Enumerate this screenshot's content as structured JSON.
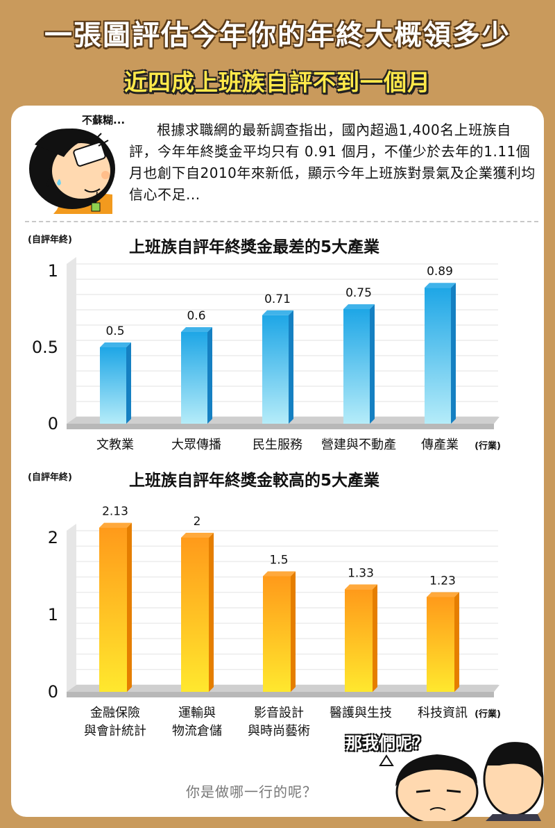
{
  "header": {
    "title": "一張圖評估今年你的年終大概領多少",
    "subtitle": "近四成上班族自評不到一個月"
  },
  "intro": {
    "bubble_label": "不蘇糊...",
    "text": "根據求職網的最新調查指出，國內超過1,400名上班族自評，今年年終獎金平均只有 0.91 個月，不僅少於去年的1.11個月也創下自2010年來新低，顯示今年上班族對景氣及企業獲利均信心不足..."
  },
  "chart_data": [
    {
      "type": "bar",
      "title": "上班族自評年終獎金最差的5大產業",
      "ylabel": "(自評年終)",
      "xlabel": "(行業)",
      "categories": [
        "文教業",
        "大眾傳播",
        "民生服務",
        "營建與不動產",
        "傳產業"
      ],
      "values": [
        0.5,
        0.6,
        0.71,
        0.75,
        0.89
      ],
      "value_labels": [
        "0.5",
        "0.6",
        "0.71",
        "0.75",
        "0.89"
      ],
      "yticks": [
        "0",
        "0.5",
        "1"
      ],
      "ylim": [
        0,
        1
      ],
      "grid": true,
      "colors": {
        "top": "#1ea6e6",
        "bottom": "#b5ecf9",
        "side": "#1580c2"
      }
    },
    {
      "type": "bar",
      "title": "上班族自評年終獎金較高的5大產業",
      "ylabel": "(自評年終)",
      "xlabel": "(行業)",
      "categories": [
        "金融保險\n與會計統計",
        "運輸與\n物流倉儲",
        "影音設計\n與時尚藝術",
        "醫護與生技",
        "科技資訊"
      ],
      "values": [
        2.13,
        2.0,
        1.5,
        1.33,
        1.23
      ],
      "value_labels": [
        "2.13",
        "2",
        "1.5",
        "1.33",
        "1.23"
      ],
      "yticks": [
        "0",
        "1",
        "2"
      ],
      "ylim": [
        0,
        2
      ],
      "grid": true,
      "colors": {
        "top": "#ff9a1a",
        "bottom": "#ffe82e",
        "side": "#e57e00"
      }
    }
  ],
  "footer": {
    "ask": "那我們呢？",
    "question": "你是做哪一行的呢？"
  }
}
